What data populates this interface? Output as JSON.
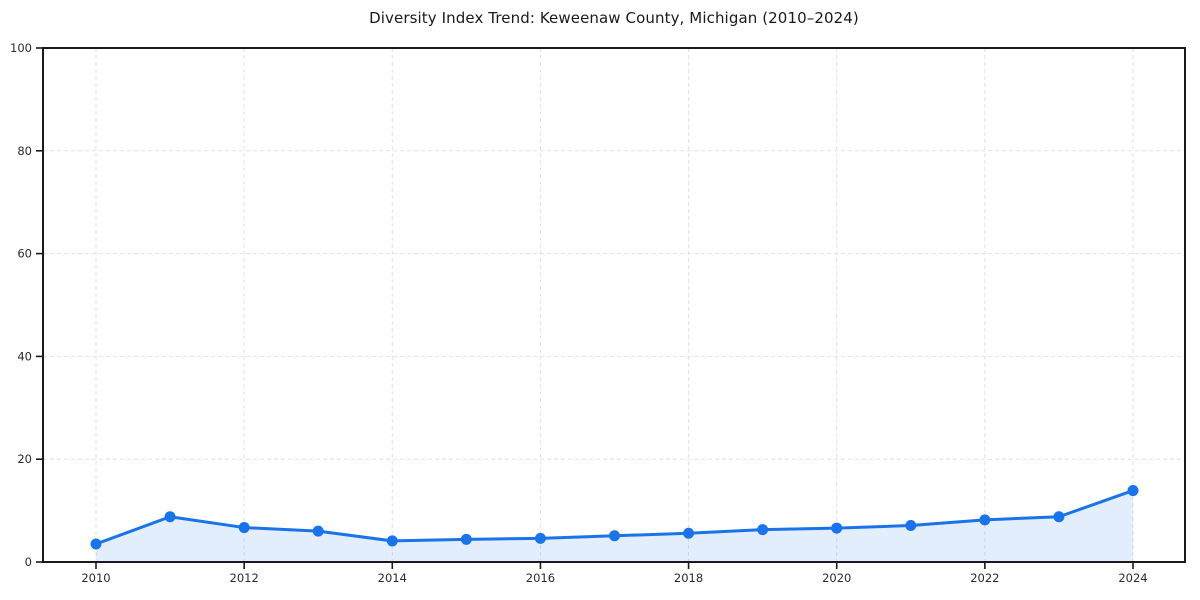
{
  "chart_data": {
    "type": "line",
    "title": "Diversity Index Trend: Keweenaw County, Michigan (2010–2024)",
    "x": [
      2010,
      2011,
      2012,
      2013,
      2014,
      2015,
      2016,
      2017,
      2018,
      2019,
      2020,
      2021,
      2022,
      2023,
      2024
    ],
    "series": [
      {
        "name": "Diversity Index",
        "values": [
          3.5,
          8.8,
          6.7,
          6.0,
          4.1,
          4.4,
          4.6,
          5.1,
          5.6,
          6.3,
          6.6,
          7.1,
          8.2,
          8.8,
          13.9
        ]
      }
    ],
    "xlabel": "",
    "ylabel": "",
    "ylim": [
      0,
      100
    ],
    "yticks": [
      0,
      20,
      40,
      60,
      80,
      100
    ],
    "xticks": [
      2010,
      2012,
      2014,
      2016,
      2018,
      2020,
      2022,
      2024
    ],
    "grid": true,
    "grid_style": "dashed",
    "legend": "none",
    "area_fill": true,
    "marker": "circle",
    "colors": {
      "line": "#1a73e8",
      "marker": "#1a73e8",
      "fill": "rgba(26, 115, 232, 0.12)",
      "grid": "#e2e2e2",
      "axis": "#1a1a1a",
      "tick_label": "#2b2b2b"
    }
  }
}
